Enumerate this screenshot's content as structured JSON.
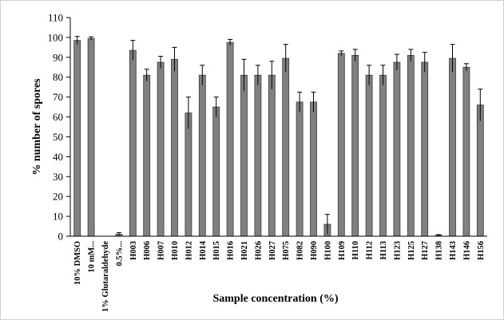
{
  "chart_data": {
    "type": "bar",
    "title": "",
    "xlabel": "Sample concentration (%)",
    "ylabel": "%  number of spores",
    "ylim": [
      0,
      110
    ],
    "yticks": [
      0,
      10,
      20,
      30,
      40,
      50,
      60,
      70,
      80,
      90,
      100,
      110
    ],
    "grid": false,
    "legend": "none",
    "bar_color": "#808080",
    "categories": [
      "10% DMSO",
      "10 mM...",
      "1% Glutaraldehyde",
      "0.5%...",
      "H003",
      "H006",
      "H007",
      "H010",
      "H012",
      "H014",
      "H015",
      "H016",
      "H021",
      "H026",
      "H027",
      "H075",
      "H082",
      "H090",
      "H100",
      "H109",
      "H110",
      "H112",
      "H113",
      "H123",
      "H125",
      "H127",
      "H138",
      "H143",
      "H146",
      "H156"
    ],
    "values": [
      98.5,
      99.5,
      0,
      1,
      93.5,
      81,
      87.5,
      89,
      62,
      81,
      65,
      97.5,
      81,
      81,
      81,
      89.5,
      67.5,
      67.5,
      6,
      92,
      91,
      81,
      81,
      87.5,
      91,
      87.5,
      0.5,
      89.5,
      85,
      66
    ],
    "errors": [
      2,
      0.8,
      0,
      0.8,
      5,
      3,
      3,
      6,
      8,
      5,
      5,
      1.5,
      8,
      5,
      7,
      7,
      5,
      5,
      5,
      1.2,
      3,
      5,
      5,
      4,
      3,
      5,
      0.3,
      7,
      1.8,
      8
    ]
  }
}
